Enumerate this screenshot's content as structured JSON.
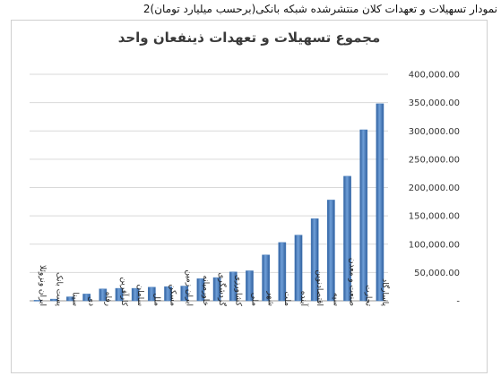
{
  "caption": "نمودار تسهیلات و تعهدات کلان منتشرشده شبکه بانکی(برحسب میلیارد تومان)2",
  "chart_data": {
    "type": "bar",
    "title": "مجموع تسهیلات و تعهدات ذینفعان واحد",
    "categories": [
      "ایران ونزوئلا",
      "پست بانک",
      "سینا",
      "دی",
      "رفاه",
      "کارآفرین",
      "سامان",
      "ملل",
      "مسکن",
      "ایران زمین",
      "خاورمیانه",
      "گردشگری",
      "کشاورزی",
      "ملی",
      "شهر",
      "ملت",
      "آینده",
      "اقتصادنوین",
      "سپه",
      "صنعت و معدن",
      "تجارت",
      "پاسارگاد"
    ],
    "values": [
      1000,
      3000,
      7000,
      12000,
      21000,
      22000,
      22000,
      24000,
      25000,
      26000,
      39000,
      41000,
      51000,
      53000,
      81000,
      103000,
      116000,
      145000,
      178000,
      220000,
      302000,
      348000
    ],
    "ylim": [
      0,
      400000
    ],
    "ytick_labels": [
      "-",
      "50,000.00",
      "100,000.00",
      "150,000.00",
      "200,000.00",
      "250,000.00",
      "300,000.00",
      "350,000.00",
      "400,000.00"
    ],
    "bar_color": "#4a7ebb",
    "grid": true,
    "xlabel": "",
    "ylabel": ""
  }
}
